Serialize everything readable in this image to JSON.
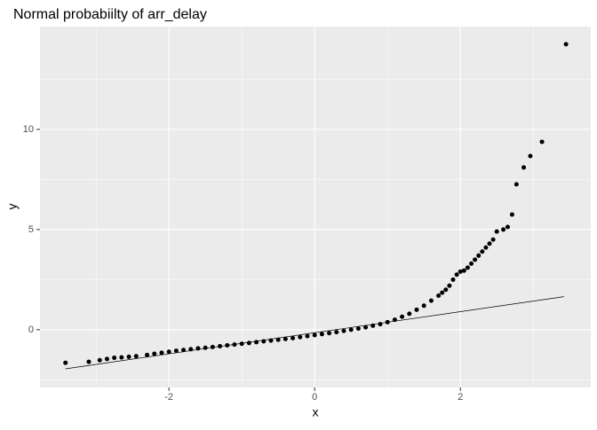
{
  "chart_data": {
    "type": "scatter",
    "title": "Normal probabiilty of arr_delay",
    "x_label": "x",
    "y_label": "y",
    "x": [
      -3.42,
      -3.1,
      -2.95,
      -2.85,
      -2.75,
      -2.65,
      -2.55,
      -2.45,
      -2.3,
      -2.2,
      -2.1,
      -2.0,
      -1.9,
      -1.8,
      -1.7,
      -1.6,
      -1.5,
      -1.4,
      -1.3,
      -1.2,
      -1.1,
      -1.0,
      -0.9,
      -0.8,
      -0.7,
      -0.6,
      -0.5,
      -0.4,
      -0.3,
      -0.2,
      -0.1,
      0.0,
      0.1,
      0.2,
      0.3,
      0.4,
      0.5,
      0.6,
      0.7,
      0.8,
      0.9,
      1.0,
      1.1,
      1.2,
      1.3,
      1.4,
      1.5,
      1.6,
      1.7,
      1.75,
      1.8,
      1.85,
      1.9,
      1.95,
      2.0,
      2.05,
      2.1,
      2.15,
      2.2,
      2.25,
      2.3,
      2.35,
      2.4,
      2.45,
      2.5,
      2.59,
      2.65,
      2.71,
      2.77,
      2.87,
      2.96,
      3.12,
      3.45
    ],
    "y": [
      -1.65,
      -1.6,
      -1.52,
      -1.46,
      -1.4,
      -1.38,
      -1.35,
      -1.32,
      -1.26,
      -1.2,
      -1.15,
      -1.1,
      -1.05,
      -1.01,
      -0.97,
      -0.93,
      -0.9,
      -0.86,
      -0.82,
      -0.78,
      -0.74,
      -0.7,
      -0.66,
      -0.62,
      -0.58,
      -0.54,
      -0.5,
      -0.46,
      -0.42,
      -0.37,
      -0.32,
      -0.27,
      -0.22,
      -0.17,
      -0.12,
      -0.06,
      0.0,
      0.06,
      0.12,
      0.2,
      0.28,
      0.38,
      0.5,
      0.65,
      0.8,
      1.0,
      1.2,
      1.45,
      1.7,
      1.85,
      2.0,
      2.2,
      2.5,
      2.75,
      2.9,
      2.95,
      3.1,
      3.3,
      3.5,
      3.7,
      3.9,
      4.1,
      4.3,
      4.5,
      4.9,
      5.0,
      5.13,
      5.75,
      7.26,
      8.1,
      8.67,
      9.38,
      14.25
    ],
    "color": "#000000",
    "reference_line": {
      "x": [
        -3.42,
        3.42
      ],
      "y": [
        -1.95,
        1.65
      ],
      "color": "#000000"
    },
    "xlim": [
      -3.77,
      3.79
    ],
    "ylim": [
      -2.88,
      15.13
    ],
    "xticks": [
      -2,
      0,
      2
    ],
    "yticks": [
      0,
      5,
      10
    ],
    "x_minor_breaks": [
      -3,
      -1,
      1,
      3
    ],
    "y_minor_breaks": [
      -2.5,
      2.5,
      7.5,
      12.5
    ],
    "grid": true
  }
}
